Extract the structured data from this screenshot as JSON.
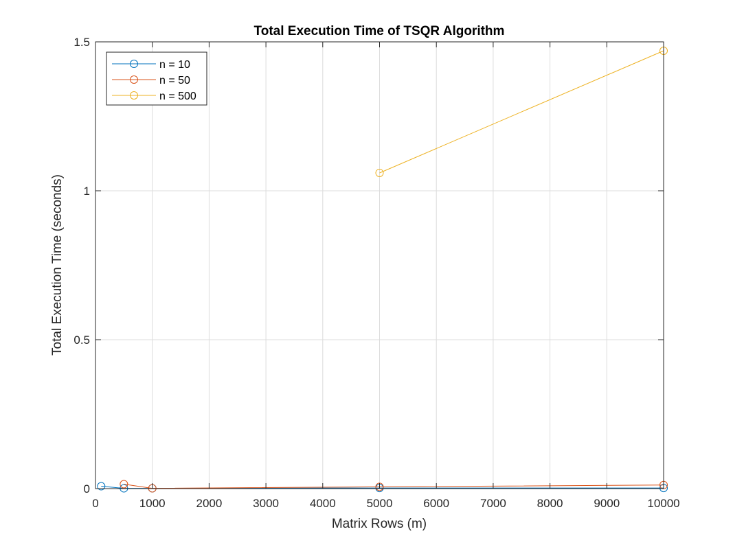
{
  "chart_data": {
    "type": "line",
    "title": "Total Execution Time of TSQR Algorithm",
    "xlabel": "Matrix Rows (m)",
    "ylabel": "Total Execution Time (seconds)",
    "xlim": [
      0,
      10000
    ],
    "ylim": [
      0,
      1.5
    ],
    "xticks": [
      0,
      1000,
      2000,
      3000,
      4000,
      5000,
      6000,
      7000,
      8000,
      9000,
      10000
    ],
    "yticks": [
      0,
      0.5,
      1,
      1.5
    ],
    "xtick_labels": [
      "0",
      "1000",
      "2000",
      "3000",
      "4000",
      "5000",
      "6000",
      "7000",
      "8000",
      "9000",
      "10000"
    ],
    "ytick_labels": [
      "0",
      "0.5",
      "1",
      "1.5"
    ],
    "grid": true,
    "legend_position": "top-left",
    "marker": "open-circle",
    "series": [
      {
        "name": "n = 10",
        "color": "#0072BD",
        "x": [
          100,
          500,
          1000,
          5000,
          10000
        ],
        "y": [
          0.008,
          0.001,
          0.001,
          0.002,
          0.002
        ]
      },
      {
        "name": "n = 50",
        "color": "#D95319",
        "x": [
          500,
          1000,
          5000,
          10000
        ],
        "y": [
          0.015,
          0.001,
          0.006,
          0.012
        ]
      },
      {
        "name": "n = 500",
        "color": "#EDB120",
        "x": [
          5000,
          10000
        ],
        "y": [
          1.06,
          1.47
        ]
      }
    ]
  }
}
